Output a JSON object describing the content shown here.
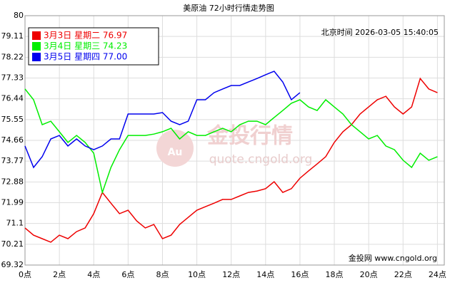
{
  "chart_data": {
    "type": "line",
    "title": "美原油 72小时行情走势图",
    "timestamp": "北京时间 2026-03-05 15:40:05",
    "watermark": "金投行情",
    "watermark_url": "quote.cngold.org",
    "watermark_logo": "Au",
    "footer": "金投网 www.cngold.org",
    "x": [
      0,
      0.5,
      1,
      1.5,
      2,
      2.5,
      3,
      3.5,
      4,
      4.5,
      5,
      5.5,
      6,
      6.5,
      7,
      7.5,
      8,
      8.5,
      9,
      9.5,
      10,
      10.5,
      11,
      11.5,
      12,
      12.5,
      13,
      13.5,
      14,
      14.5,
      15,
      15.5,
      16,
      16.5,
      17,
      17.5,
      18,
      18.5,
      19,
      19.5,
      20,
      20.5,
      21,
      21.5,
      22,
      22.5,
      23,
      23.5,
      24
    ],
    "series": [
      {
        "name": "3月3日 星期二 76.97",
        "color": "#ee0000",
        "values": [
          70.91,
          70.6,
          70.45,
          70.3,
          70.6,
          70.45,
          70.75,
          70.91,
          71.52,
          72.43,
          71.97,
          71.52,
          71.67,
          71.21,
          70.91,
          71.06,
          70.45,
          70.6,
          71.06,
          71.36,
          71.67,
          71.82,
          71.97,
          72.13,
          72.13,
          72.28,
          72.43,
          72.49,
          72.59,
          72.89,
          72.43,
          72.59,
          73.04,
          73.35,
          73.65,
          73.96,
          74.57,
          75.03,
          75.33,
          75.79,
          76.09,
          76.4,
          76.55,
          76.09,
          75.79,
          76.09,
          77.31,
          76.86,
          76.7
        ]
      },
      {
        "name": "3月4日 星期三 74.23",
        "color": "#00ee00",
        "values": [
          76.86,
          76.4,
          75.33,
          75.48,
          75.03,
          74.57,
          74.87,
          74.57,
          74.11,
          72.43,
          73.5,
          74.26,
          74.87,
          74.87,
          74.87,
          74.93,
          75.03,
          75.18,
          74.72,
          75.03,
          74.87,
          74.87,
          75.03,
          75.18,
          75.03,
          75.33,
          75.48,
          75.48,
          75.33,
          75.64,
          75.94,
          76.25,
          76.4,
          76.09,
          75.94,
          76.4,
          76.09,
          75.79,
          75.33,
          75.03,
          74.72,
          74.87,
          74.42,
          74.26,
          73.81,
          73.5,
          74.11,
          73.81,
          73.96
        ]
      },
      {
        "name": "3月5日 星期四 77.00",
        "color": "#0000ee",
        "values": [
          74.42,
          73.5,
          73.96,
          74.72,
          74.87,
          74.42,
          74.72,
          74.42,
          74.26,
          74.42,
          74.72,
          74.72,
          75.79,
          75.79,
          75.79,
          75.79,
          75.85,
          75.48,
          75.33,
          75.48,
          76.4,
          76.4,
          76.7,
          76.86,
          77.01,
          77.01,
          77.16,
          77.31,
          77.47,
          77.62,
          77.16,
          76.4,
          76.7,
          null,
          null,
          null,
          null,
          null,
          null,
          null,
          null,
          null,
          null,
          null,
          null,
          null,
          null,
          null,
          null
        ]
      }
    ],
    "xlim": [
      0,
      24.4
    ],
    "xticks": [
      {
        "value": 0,
        "label": "0点"
      },
      {
        "value": 2,
        "label": "2点"
      },
      {
        "value": 4,
        "label": "4点"
      },
      {
        "value": 6,
        "label": "6点"
      },
      {
        "value": 8,
        "label": "8点"
      },
      {
        "value": 10,
        "label": "10点"
      },
      {
        "value": 12,
        "label": "12点"
      },
      {
        "value": 14,
        "label": "14点"
      },
      {
        "value": 16,
        "label": "16点"
      },
      {
        "value": 18,
        "label": "18点"
      },
      {
        "value": 20,
        "label": "20点"
      },
      {
        "value": 22,
        "label": "22点"
      },
      {
        "value": 24,
        "label": "24点"
      }
    ],
    "ylim": [
      69.32,
      80
    ],
    "yticks": [
      69.32,
      70.21,
      71.1,
      71.99,
      72.88,
      73.77,
      74.66,
      75.55,
      76.44,
      77.33,
      78.22,
      79.11,
      80
    ],
    "grid": true
  }
}
